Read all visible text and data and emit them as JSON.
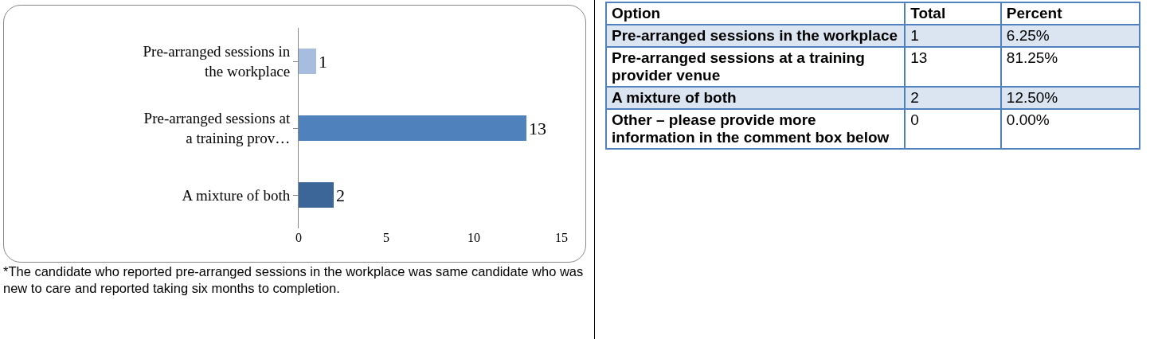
{
  "chart_data": [
    {
      "type": "bar",
      "orientation": "horizontal",
      "categories": [
        "Pre-arranged sessions in the workplace",
        "Pre-arranged sessions at a training prov…",
        "A mixture of both"
      ],
      "values": [
        1,
        13,
        2
      ],
      "colors": [
        "#a7bde0",
        "#4f81bd",
        "#3c6598"
      ],
      "xlim": [
        0,
        15
      ],
      "xticks": [
        0,
        5,
        10,
        15
      ],
      "grid": false,
      "legend": false,
      "data_labels": true,
      "annotations": [
        "*The candidate who reported pre-arranged sessions in the workplace was same candidate who was new to care and reported taking six months to completion."
      ]
    },
    {
      "type": "other",
      "xlabel": "Option",
      "categories": [
        "Pre-arranged sessions in the workplace",
        "Pre-arranged sessions at a training provider venue",
        "A mixture of both",
        "Other – please provide more information in the comment box below"
      ],
      "series": [
        {
          "name": "Total",
          "values": [
            1,
            13,
            2,
            0
          ]
        },
        {
          "name": "Percent",
          "values": [
            6.25,
            81.25,
            12.5,
            0
          ],
          "value_labels": [
            "6.25%",
            "81.25%",
            "12.50%",
            "0.00%"
          ]
        }
      ],
      "data_labels": true
    }
  ]
}
